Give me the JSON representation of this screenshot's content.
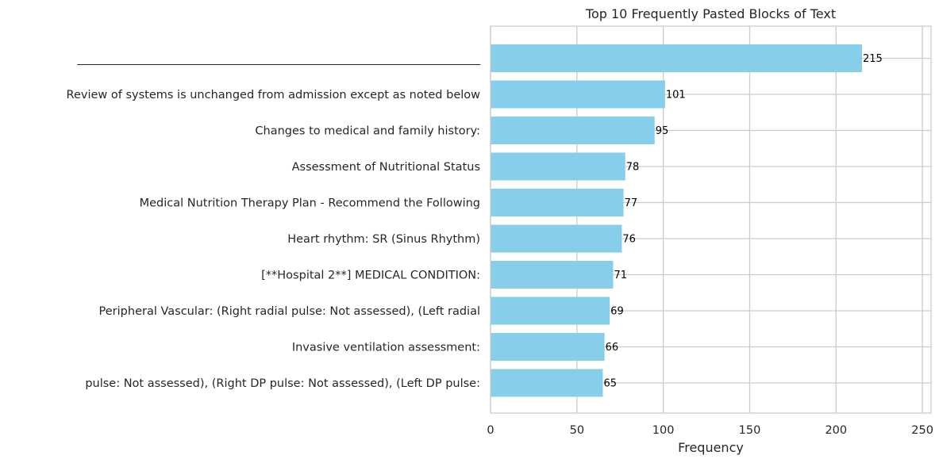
{
  "chart_data": {
    "type": "bar",
    "orientation": "horizontal",
    "title": "Top 10 Frequently Pasted Blocks of Text",
    "xlabel": "Frequency",
    "ylabel": "",
    "xlim": [
      0,
      255
    ],
    "xticks": [
      0,
      50,
      100,
      150,
      200,
      250
    ],
    "grid": true,
    "bar_color": "#87ceeb",
    "categories": [
      "______________________________________________________________________",
      "Review of systems is unchanged from admission except as noted below",
      "Changes to medical and family history:",
      "Assessment of Nutritional Status",
      "Medical Nutrition Therapy Plan - Recommend the Following",
      "Heart rhythm: SR (Sinus Rhythm)",
      "[**Hospital 2**] MEDICAL CONDITION:",
      "Peripheral Vascular: (Right radial pulse: Not assessed), (Left radial",
      "Invasive ventilation assessment:",
      "pulse: Not assessed), (Right DP pulse: Not assessed), (Left DP pulse:"
    ],
    "values": [
      215,
      101,
      95,
      78,
      77,
      76,
      71,
      69,
      66,
      65
    ]
  }
}
